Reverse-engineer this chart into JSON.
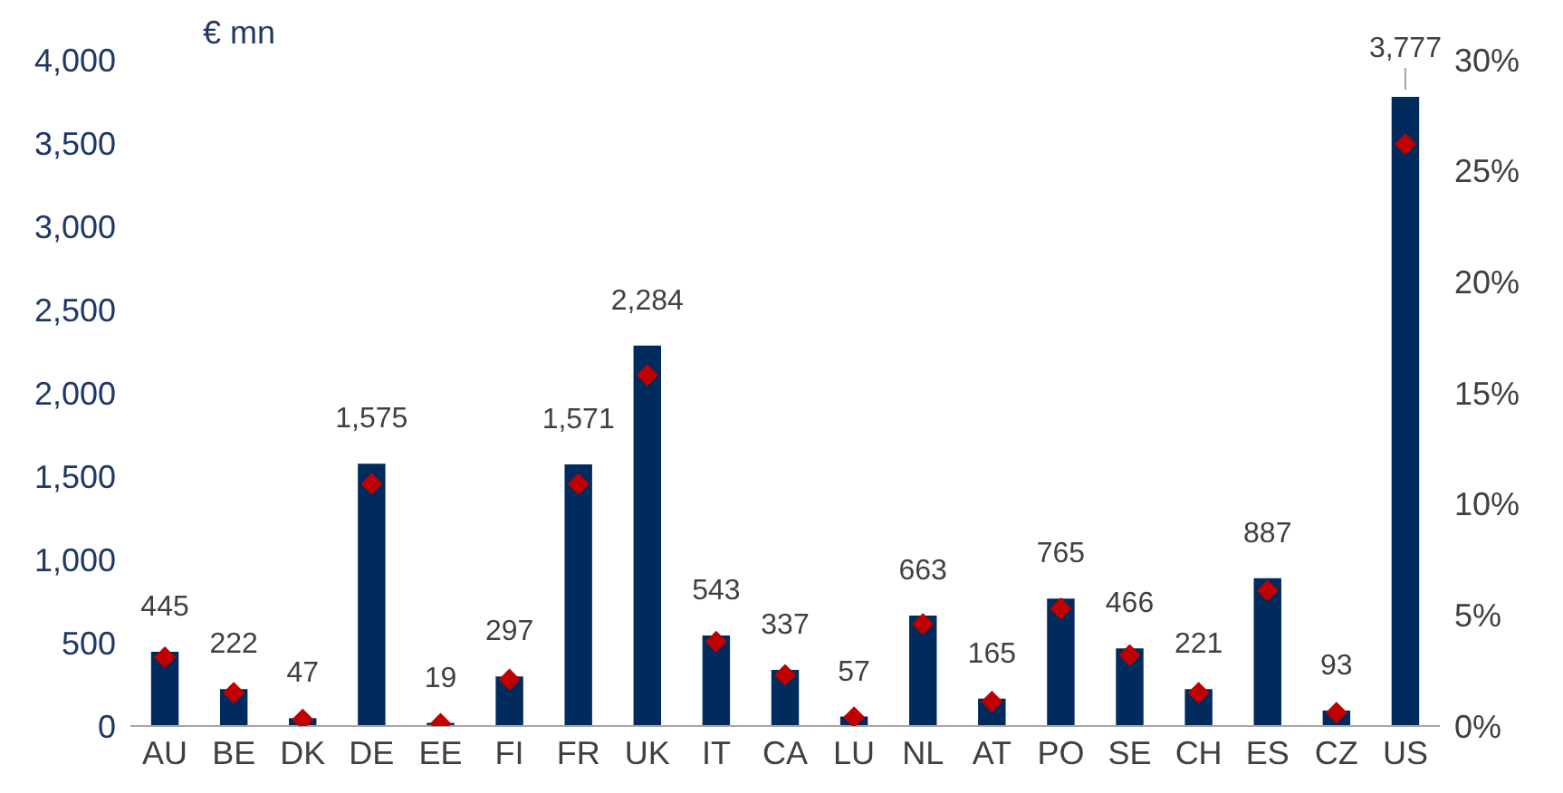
{
  "chart_data": {
    "type": "bar",
    "ylabel": "€ mn",
    "categories": [
      "AU",
      "BE",
      "DK",
      "DE",
      "EE",
      "FI",
      "FR",
      "UK",
      "IT",
      "CA",
      "LU",
      "NL",
      "AT",
      "PO",
      "SE",
      "CH",
      "ES",
      "CZ",
      "US"
    ],
    "series": [
      {
        "color": "#002b5c",
        "values": [
          445,
          222,
          47,
          1575,
          19,
          297,
          1571,
          2284,
          543,
          337,
          57,
          663,
          165,
          765,
          466,
          221,
          887,
          93,
          3777
        ],
        "value_labels": [
          "445",
          "222",
          "47",
          "1,575",
          "19",
          "297",
          "1,571",
          "2,284",
          "543",
          "337",
          "57",
          "663",
          "165",
          "765",
          "466",
          "221",
          "887",
          "93",
          "3,777"
        ]
      },
      {
        "type": "scatter",
        "axis": "y2",
        "marker": "diamond",
        "color": "#c00000",
        "values": [
          3.1,
          1.5,
          0.3,
          10.9,
          0.1,
          2.1,
          10.9,
          15.8,
          3.8,
          2.3,
          0.4,
          4.6,
          1.1,
          5.3,
          3.2,
          1.5,
          6.1,
          0.6,
          26.2
        ]
      }
    ],
    "ylim": [
      0,
      4000
    ],
    "yticks": [
      {
        "value": 0,
        "label": "0"
      },
      {
        "value": 500,
        "label": "500"
      },
      {
        "value": 1000,
        "label": "1,000"
      },
      {
        "value": 1500,
        "label": "1,500"
      },
      {
        "value": 2000,
        "label": "2,000"
      },
      {
        "value": 2500,
        "label": "2,500"
      },
      {
        "value": 3000,
        "label": "3,000"
      },
      {
        "value": 3500,
        "label": "3,500"
      },
      {
        "value": 4000,
        "label": "4,000"
      }
    ],
    "y2lim": [
      0,
      30
    ],
    "y2ticks": [
      {
        "value": 0,
        "label": "0%"
      },
      {
        "value": 5,
        "label": "5%"
      },
      {
        "value": 10,
        "label": "10%"
      },
      {
        "value": 15,
        "label": "15%"
      },
      {
        "value": 20,
        "label": "20%"
      },
      {
        "value": 25,
        "label": "25%"
      },
      {
        "value": 30,
        "label": "30%"
      }
    ],
    "grid": false,
    "legend": false
  }
}
